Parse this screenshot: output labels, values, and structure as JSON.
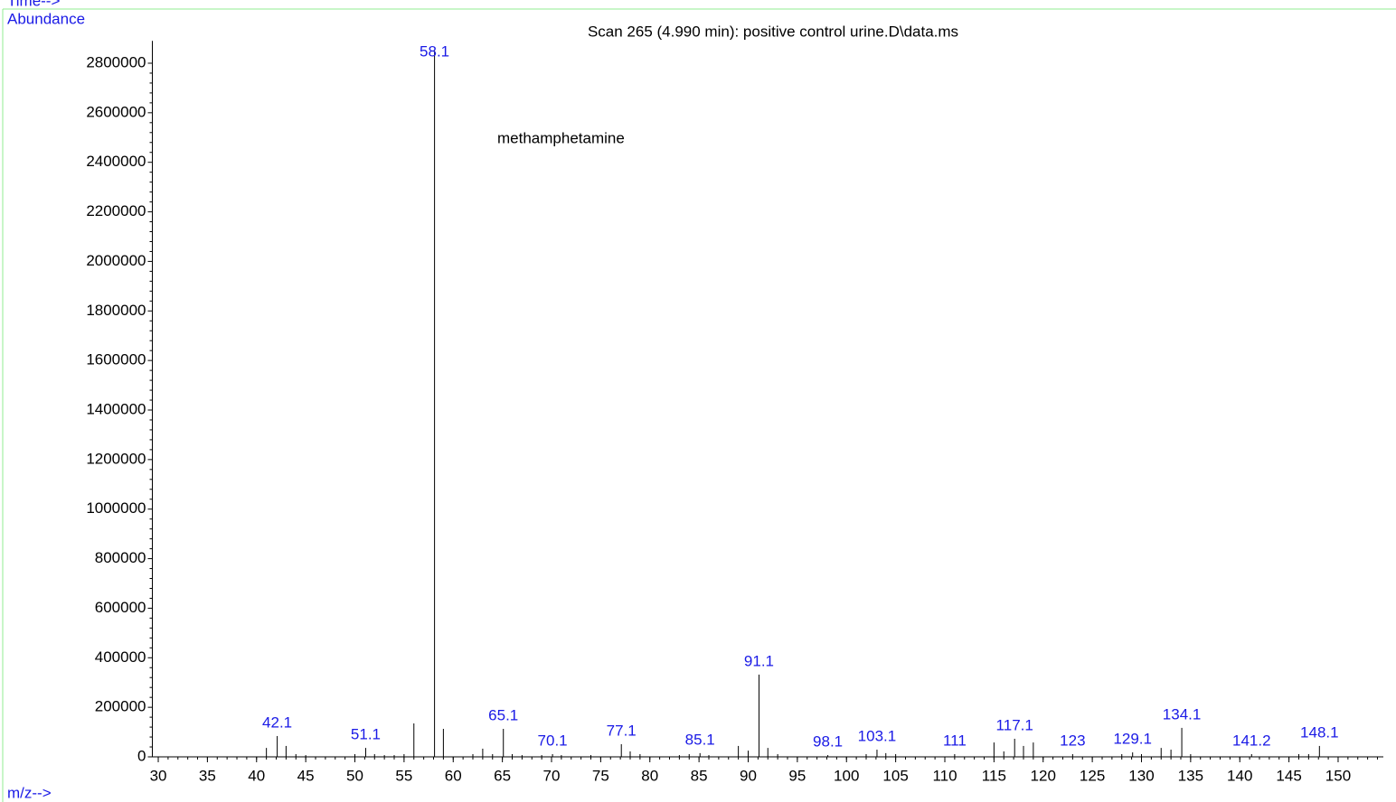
{
  "chart_data": {
    "type": "spectrum",
    "title": "Scan 265 (4.990 min): positive control urine.D\\data.ms",
    "annotation": "methamphetamine",
    "time_label": "Time-->",
    "y_label": "Abundance",
    "x_label": "m/z-->",
    "line_color": "#000000",
    "label_color": "#1a1ae6",
    "xlim": [
      29.4,
      154.6
    ],
    "xticks": [
      30,
      35,
      40,
      45,
      50,
      55,
      60,
      65,
      70,
      75,
      80,
      85,
      90,
      95,
      100,
      105,
      110,
      115,
      120,
      125,
      130,
      135,
      140,
      145,
      150
    ],
    "ylim": [
      0,
      2890000
    ],
    "yticks": [
      0,
      200000,
      400000,
      600000,
      800000,
      1000000,
      1200000,
      1400000,
      1600000,
      1800000,
      2000000,
      2200000,
      2400000,
      2600000,
      2800000
    ],
    "series": [
      {
        "show_x_labels": true,
        "x": [
          42.1,
          51.1,
          58.1,
          65.1,
          70.1,
          77.1,
          85.1,
          91.1,
          98.1,
          103.1,
          111.0,
          117.1,
          123.0,
          129.1,
          134.1,
          141.2,
          148.1
        ],
        "values": [
          84000,
          36000,
          2850000,
          113000,
          11000,
          51000,
          15000,
          332000,
          7000,
          29000,
          11000,
          73000,
          11000,
          18000,
          117000,
          11000,
          44000
        ]
      },
      {
        "show_x_labels": false,
        "x": [
          41,
          43,
          44,
          45,
          50,
          52,
          53,
          54,
          55,
          56,
          59,
          62,
          63,
          64,
          66,
          67,
          69,
          71,
          74,
          78,
          79,
          83,
          84,
          86,
          89,
          90,
          92,
          93,
          102,
          104,
          105,
          115,
          116,
          118,
          119,
          128,
          130,
          132,
          133,
          135,
          146,
          147
        ],
        "values": [
          36000,
          44000,
          11000,
          7000,
          11000,
          11000,
          7000,
          7000,
          11000,
          135000,
          113000,
          11000,
          33000,
          11000,
          11000,
          7000,
          7000,
          7000,
          7000,
          22000,
          11000,
          7000,
          11000,
          7000,
          44000,
          25000,
          36000,
          11000,
          11000,
          15000,
          11000,
          58000,
          22000,
          44000,
          58000,
          11000,
          11000,
          36000,
          29000,
          11000,
          11000,
          11000
        ]
      }
    ]
  }
}
